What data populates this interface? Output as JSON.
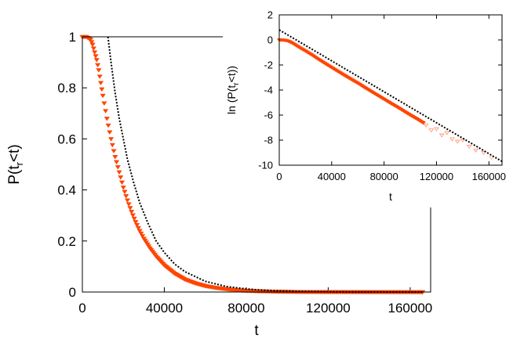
{
  "chart_data": [
    {
      "type": "scatter",
      "xlabel": "t",
      "ylabel": "P(t_r<t)",
      "ylabel_main": "P(t",
      "ylabel_sub": "r",
      "ylabel_tail": "<t)",
      "xlim": [
        0,
        170000
      ],
      "ylim": [
        0,
        1
      ],
      "x_ticks": [
        0,
        40000,
        80000,
        120000,
        160000
      ],
      "x_tick_labels": [
        "0",
        "40000",
        "80000",
        "120000",
        "160000"
      ],
      "y_ticks": [
        0,
        0.2,
        0.4,
        0.6,
        0.8,
        1
      ],
      "y_tick_labels": [
        "0",
        "0.2",
        "0.4",
        "0.6",
        "0.8",
        "1"
      ],
      "grid": false,
      "reference_line": {
        "y": 1,
        "x_range": [
          0,
          70000
        ]
      },
      "series": [
        {
          "color": "#ff4500",
          "marker": "triangle-down",
          "x": [
            0,
            2000,
            4000,
            5000,
            6000,
            7000,
            8000,
            9000,
            10000,
            12000,
            14000,
            16000,
            18000,
            20000,
            22000,
            24000,
            26000,
            28000,
            30000,
            33000,
            36000,
            40000,
            45000,
            50000,
            55000,
            60000,
            65000,
            70000,
            75000,
            80000,
            85000,
            90000,
            95000,
            100000,
            105000,
            110000,
            120000,
            130000,
            140000,
            150000,
            160000,
            166000
          ],
          "y": [
            1.0,
            1.0,
            0.99,
            0.97,
            0.94,
            0.91,
            0.87,
            0.82,
            0.77,
            0.68,
            0.6,
            0.53,
            0.47,
            0.41,
            0.36,
            0.315,
            0.275,
            0.24,
            0.21,
            0.172,
            0.14,
            0.105,
            0.073,
            0.05,
            0.035,
            0.024,
            0.017,
            0.012,
            0.008,
            0.0055,
            0.004,
            0.003,
            0.002,
            0.0015,
            0.001,
            0.0008,
            0.0005,
            0.0003,
            0.0002,
            0.0001,
            0.0001,
            0.0001
          ]
        },
        {
          "color": "#000000",
          "style": "dotted",
          "x": [
            12500,
            14000,
            16000,
            18000,
            20000,
            22000,
            25000,
            28000,
            32000,
            36000,
            40000,
            45000,
            50000,
            60000,
            70000,
            80000,
            90000,
            100000,
            110000,
            120000,
            130000,
            140000,
            150000,
            160000,
            166000
          ],
          "y": [
            1.0,
            0.9,
            0.78,
            0.68,
            0.6,
            0.52,
            0.43,
            0.35,
            0.27,
            0.2,
            0.155,
            0.11,
            0.08,
            0.042,
            0.022,
            0.012,
            0.0065,
            0.0035,
            0.0019,
            0.001,
            0.0005,
            0.0003,
            0.00015,
            0.0001,
            0.0001
          ]
        }
      ]
    },
    {
      "type": "scatter",
      "xlabel": "t",
      "ylabel": "ln (P(t_r<t))",
      "ylabel_main": "ln (P(t",
      "ylabel_sub": "r",
      "ylabel_tail": "<t))",
      "xlim": [
        0,
        170000
      ],
      "ylim": [
        -10,
        2
      ],
      "x_ticks": [
        0,
        40000,
        80000,
        120000,
        160000
      ],
      "x_tick_labels": [
        "0",
        "40000",
        "80000",
        "120000",
        "160000"
      ],
      "y_ticks": [
        -10,
        -8,
        -6,
        -4,
        -2,
        0,
        2
      ],
      "y_tick_labels": [
        "-10",
        "-8",
        "-6",
        "-4",
        "-2",
        "0",
        "2"
      ],
      "grid": false,
      "series": [
        {
          "color": "#ff4500",
          "marker": "triangle-down",
          "x": [
            0,
            2000,
            4000,
            6000,
            8000,
            10000,
            12000,
            14000,
            16000,
            18000,
            20000,
            25000,
            30000,
            35000,
            40000,
            45000,
            50000,
            55000,
            60000,
            65000,
            70000,
            75000,
            80000,
            85000,
            90000,
            95000,
            100000,
            105000,
            110000
          ],
          "y": [
            0.0,
            0.0,
            -0.02,
            -0.06,
            -0.14,
            -0.25,
            -0.38,
            -0.51,
            -0.64,
            -0.76,
            -0.88,
            -1.2,
            -1.55,
            -1.88,
            -2.2,
            -2.52,
            -2.84,
            -3.15,
            -3.45,
            -3.78,
            -4.1,
            -4.42,
            -4.73,
            -5.05,
            -5.35,
            -5.68,
            -6.0,
            -6.3,
            -6.62
          ]
        },
        {
          "color": "#ff8c69",
          "marker": "triangle-down-open",
          "x": [
            112000,
            116000,
            120000,
            124000,
            128000,
            132000,
            136000,
            140000,
            145000,
            150000,
            156000,
            162000
          ],
          "y": [
            -6.8,
            -7.2,
            -7.1,
            -7.6,
            -7.4,
            -7.9,
            -8.1,
            -8.0,
            -8.5,
            -8.8,
            -9.0,
            -9.4
          ]
        },
        {
          "color": "#000000",
          "style": "dotted",
          "x": [
            0,
            170000
          ],
          "y": [
            0.8,
            -9.7
          ]
        }
      ]
    }
  ]
}
